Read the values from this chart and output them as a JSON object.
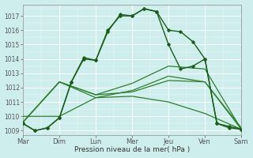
{
  "x_labels": [
    "Mar",
    "Dim",
    "Lun",
    "Mer",
    "Jeu",
    "Ven",
    "Sam"
  ],
  "ylim": [
    1008.7,
    1017.8
  ],
  "xlim": [
    0,
    6
  ],
  "xlabel": "Pression niveau de la mer( hPa )",
  "background_color": "#ceeeed",
  "grid_color": "#b8dede",
  "white_grid_color": "#ffffff",
  "line_color_dark": "#1a5c1a",
  "line_color_mid": "#2e7d2e",
  "line1_x": [
    0,
    0.33,
    0.67,
    1,
    1.33,
    1.67,
    2,
    2.33,
    2.67,
    3,
    3.33,
    3.67,
    4,
    4.33,
    4.67,
    5,
    5.33,
    5.67,
    6
  ],
  "line1_y": [
    1009.5,
    1009.0,
    1009.2,
    1009.9,
    1012.4,
    1014.0,
    1013.9,
    1016.0,
    1017.0,
    1017.0,
    1017.5,
    1017.3,
    1015.0,
    1013.3,
    1013.5,
    1014.0,
    1009.5,
    1009.2,
    1009.1
  ],
  "line2_x": [
    0,
    0.33,
    0.67,
    1,
    1.33,
    1.67,
    2,
    2.33,
    2.67,
    3,
    3.33,
    3.67,
    4,
    4.33,
    4.67,
    5,
    5.33,
    5.67,
    6
  ],
  "line2_y": [
    1009.5,
    1009.0,
    1009.2,
    1009.9,
    1012.4,
    1014.1,
    1013.9,
    1015.9,
    1017.1,
    1017.0,
    1017.5,
    1017.3,
    1016.0,
    1015.9,
    1015.2,
    1014.0,
    1009.5,
    1009.3,
    1009.1
  ],
  "crossing_lines": [
    {
      "x": [
        0,
        1,
        2,
        3,
        4,
        5,
        6
      ],
      "y": [
        1009.6,
        1012.4,
        1011.3,
        1011.4,
        1011.0,
        1010.2,
        1009.1
      ]
    },
    {
      "x": [
        0,
        1,
        2,
        3,
        4,
        5,
        6
      ],
      "y": [
        1009.6,
        1012.4,
        1011.5,
        1011.7,
        1012.5,
        1012.4,
        1009.1
      ]
    },
    {
      "x": [
        0,
        1,
        2,
        3,
        4,
        5,
        6
      ],
      "y": [
        1009.6,
        1012.4,
        1011.5,
        1012.3,
        1013.5,
        1013.3,
        1009.1
      ]
    },
    {
      "x": [
        0,
        1,
        2,
        3,
        4,
        5,
        6
      ],
      "y": [
        1010.0,
        1010.0,
        1011.3,
        1011.8,
        1012.8,
        1012.4,
        1009.2
      ]
    }
  ],
  "y_ticks": [
    1009,
    1010,
    1011,
    1012,
    1013,
    1014,
    1015,
    1016,
    1017
  ]
}
